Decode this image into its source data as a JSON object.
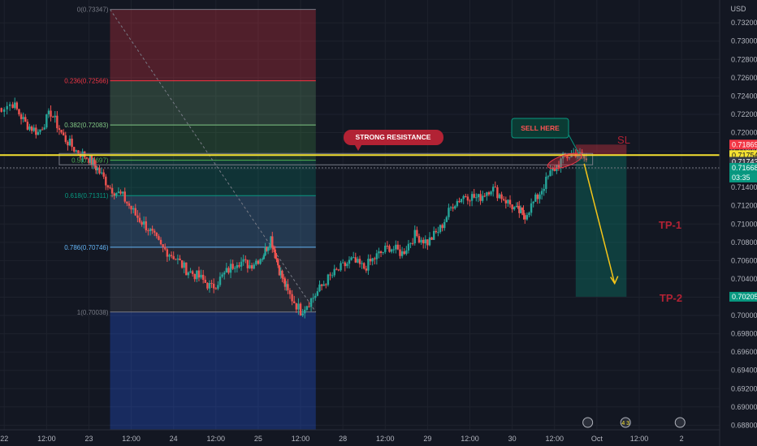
{
  "chart_data": {
    "type": "candlestick",
    "instrument_currency": "USD",
    "y_range": [
      0.6875,
      0.7345
    ],
    "y_ticks": [
      "0.73200",
      "0.73000",
      "0.72800",
      "0.72600",
      "0.72400",
      "0.72200",
      "0.72000",
      "0.71800",
      "0.71600",
      "0.71400",
      "0.71200",
      "0.71000",
      "0.70800",
      "0.70600",
      "0.70400",
      "0.70200",
      "0.70000",
      "0.69800",
      "0.69600",
      "0.69400",
      "0.69200",
      "0.69000",
      "0.68800"
    ],
    "x_ticks": [
      {
        "label": "22",
        "x": 0.0
      },
      {
        "label": "12:00",
        "x": 0.5
      },
      {
        "label": "23",
        "x": 1.0
      },
      {
        "label": "12:00",
        "x": 1.5
      },
      {
        "label": "24",
        "x": 2.0
      },
      {
        "label": "12:00",
        "x": 2.5
      },
      {
        "label": "25",
        "x": 3.0
      },
      {
        "label": "12:00",
        "x": 3.5
      },
      {
        "label": "28",
        "x": 4.0
      },
      {
        "label": "12:00",
        "x": 4.5
      },
      {
        "label": "29",
        "x": 5.0
      },
      {
        "label": "12:00",
        "x": 5.5
      },
      {
        "label": "30",
        "x": 6.0
      },
      {
        "label": "12:00",
        "x": 6.5
      },
      {
        "label": "Oct",
        "x": 7.0
      },
      {
        "label": "12:00",
        "x": 7.5
      },
      {
        "label": "2",
        "x": 8.0
      }
    ],
    "x_range": [
      -0.05,
      8.45
    ],
    "series": [
      {
        "x": [
          -0.1,
          0.1,
          0.25,
          0.4,
          0.55,
          0.7,
          0.85,
          1.0,
          1.1,
          1.25,
          1.4,
          1.55,
          1.7,
          1.85,
          2.0,
          2.15,
          2.3,
          2.45,
          2.6,
          2.75,
          2.9,
          3.05,
          3.15,
          3.25,
          3.35,
          3.5,
          3.65,
          3.8,
          3.95,
          4.1,
          4.25,
          4.4,
          4.55,
          4.7,
          4.85,
          5.0,
          5.15,
          5.3,
          5.45,
          5.6,
          5.75,
          5.9,
          6.05,
          6.15,
          6.3,
          6.45,
          6.6,
          6.75,
          6.9
        ],
        "y": [
          0.7225,
          0.7232,
          0.721,
          0.72,
          0.7222,
          0.7195,
          0.718,
          0.7172,
          0.716,
          0.714,
          0.713,
          0.711,
          0.7095,
          0.7075,
          0.7065,
          0.705,
          0.7042,
          0.703,
          0.7045,
          0.706,
          0.7055,
          0.7065,
          0.7085,
          0.705,
          0.7025,
          0.7005,
          0.702,
          0.7038,
          0.705,
          0.706,
          0.7052,
          0.7065,
          0.7075,
          0.7068,
          0.7088,
          0.708,
          0.7095,
          0.7122,
          0.7132,
          0.7128,
          0.714,
          0.7128,
          0.7115,
          0.711,
          0.713,
          0.7155,
          0.7172,
          0.7178,
          0.7168
        ]
      }
    ],
    "fib_retracement": [
      {
        "ratio": "0",
        "value": "0.73347",
        "color": "#787b86"
      },
      {
        "ratio": "0.236",
        "value": "0.72566",
        "color": "#f23645"
      },
      {
        "ratio": "0.382",
        "value": "0.72083",
        "color": "#81c784"
      },
      {
        "ratio": "0.5",
        "value": "0.71697",
        "color": "#4caf50"
      },
      {
        "ratio": "0.618",
        "value": "0.71311",
        "color": "#089981"
      },
      {
        "ratio": "0.786",
        "value": "0.70746",
        "color": "#64b5f6"
      },
      {
        "ratio": "1",
        "value": "0.70038",
        "color": "#787b86"
      }
    ],
    "horizontal_line": 0.71754,
    "price_labels": [
      {
        "text": "0.71869",
        "bg": "#f23645"
      },
      {
        "text": "0.71754",
        "bg": "#f5e131"
      },
      {
        "text": "0.71743",
        "bg": "#363a45"
      },
      {
        "text": "0.71668",
        "bg": "#089981"
      },
      {
        "text": "03:35",
        "bg": "#089981"
      },
      {
        "text": "0.70205",
        "bg": "#089981"
      }
    ],
    "annotations": {
      "strong_resistance": "STRONG RESISTANCE",
      "sell_here": "SELL HERE",
      "sl": "SL",
      "tp1": "TP-1",
      "tp2": "TP-2"
    },
    "bottom_badge": "4 3"
  }
}
